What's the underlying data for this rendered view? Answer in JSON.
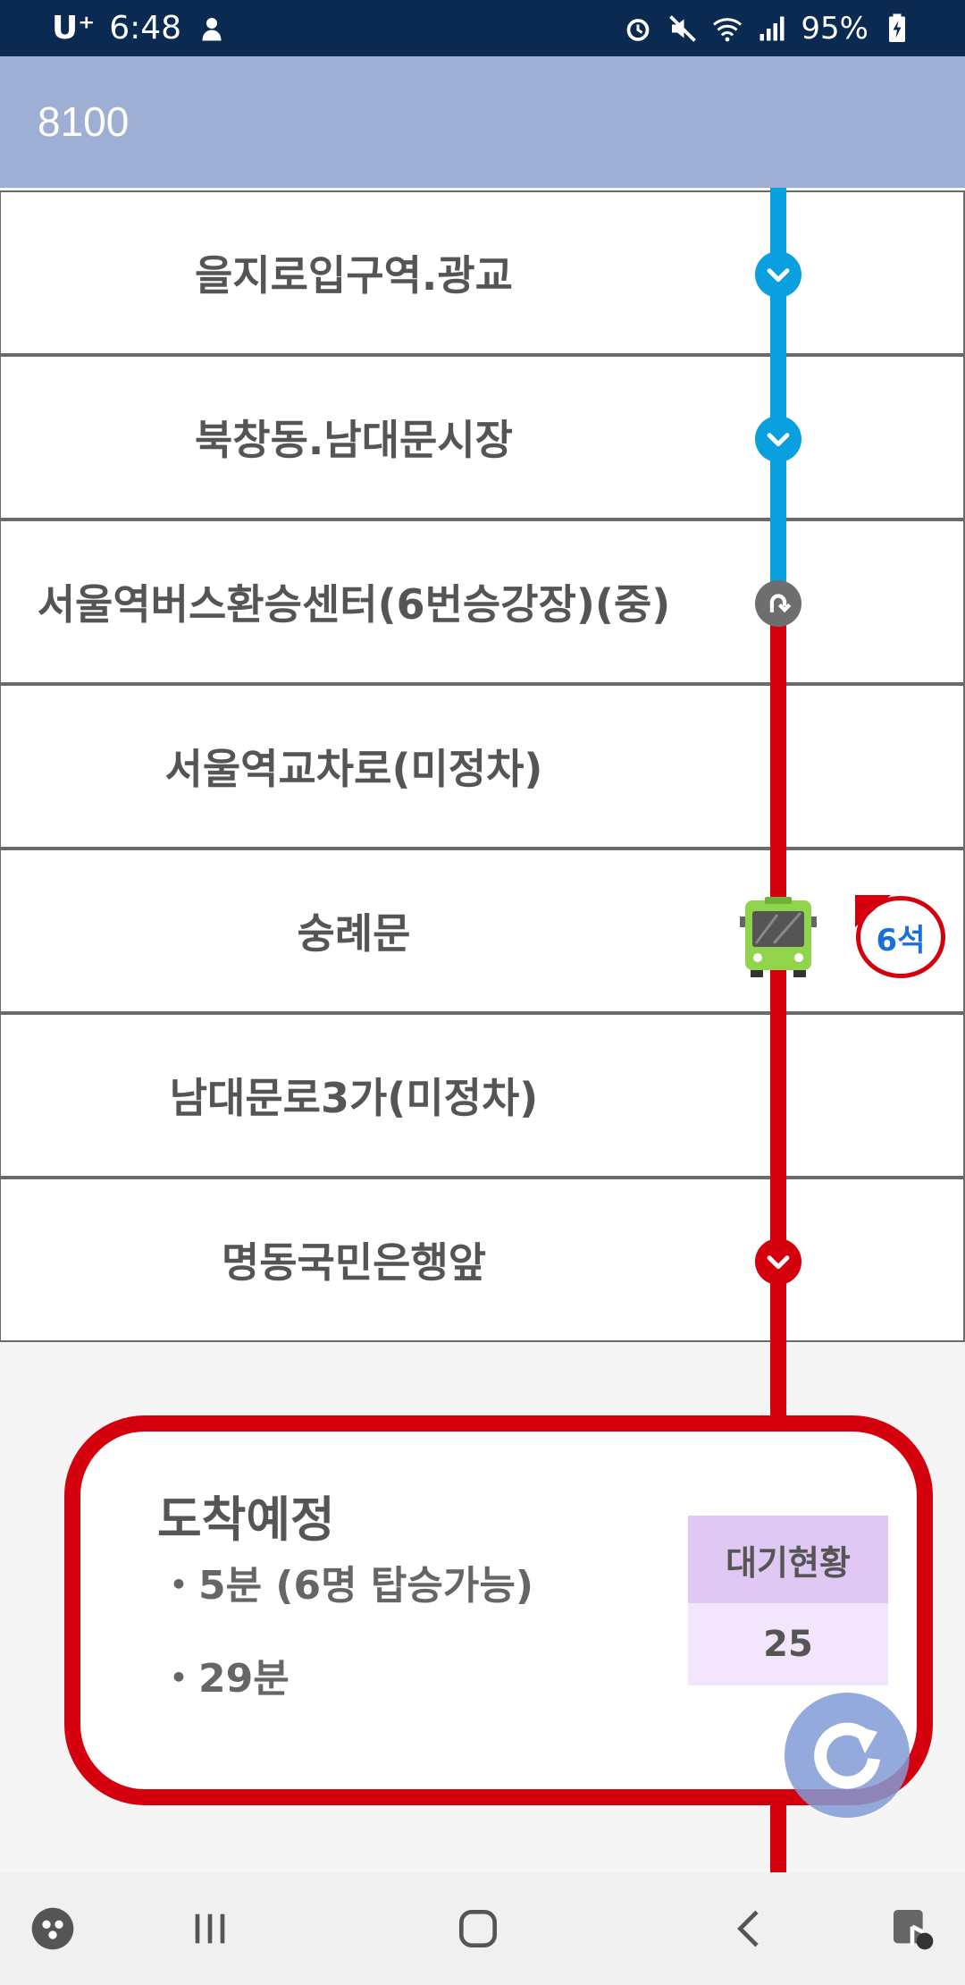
{
  "status_bar": {
    "carrier": "U⁺",
    "time": "6:48",
    "battery": "95%"
  },
  "app_bar": {
    "title": "8100"
  },
  "stops": [
    {
      "name": "을지로입구역.광교",
      "node": "chevron-down-blue"
    },
    {
      "name": "북창동.남대문시장",
      "node": "chevron-down-blue"
    },
    {
      "name": "서울역버스환승센터(6번승강장)(중)",
      "node": "turnaround-gray"
    },
    {
      "name": "서울역교차로(미정차)",
      "node": ""
    },
    {
      "name": "숭례문",
      "node": "bus"
    },
    {
      "name": "남대문로3가(미정차)",
      "node": ""
    },
    {
      "name": "명동국민은행앞",
      "node": "chevron-down-red"
    }
  ],
  "bus_badge": {
    "seats": "6석"
  },
  "arrival": {
    "title": "도착예정",
    "items": [
      "・5분 (6명 탑승가능)",
      "・29분"
    ],
    "waiting_label": "대기현황",
    "waiting_value": "25"
  },
  "colors": {
    "status_bar": "#0a2a52",
    "app_bar": "#9db0d3",
    "route_before": "#0aa0e0",
    "route_after": "#d4000e",
    "waiting_head": "#e0c8f5",
    "waiting_body": "#f3e6fc"
  },
  "icons": {
    "nav": [
      "game-launcher-icon",
      "recent-apps-icon",
      "home-icon",
      "back-icon",
      "accessibility-icon"
    ]
  }
}
